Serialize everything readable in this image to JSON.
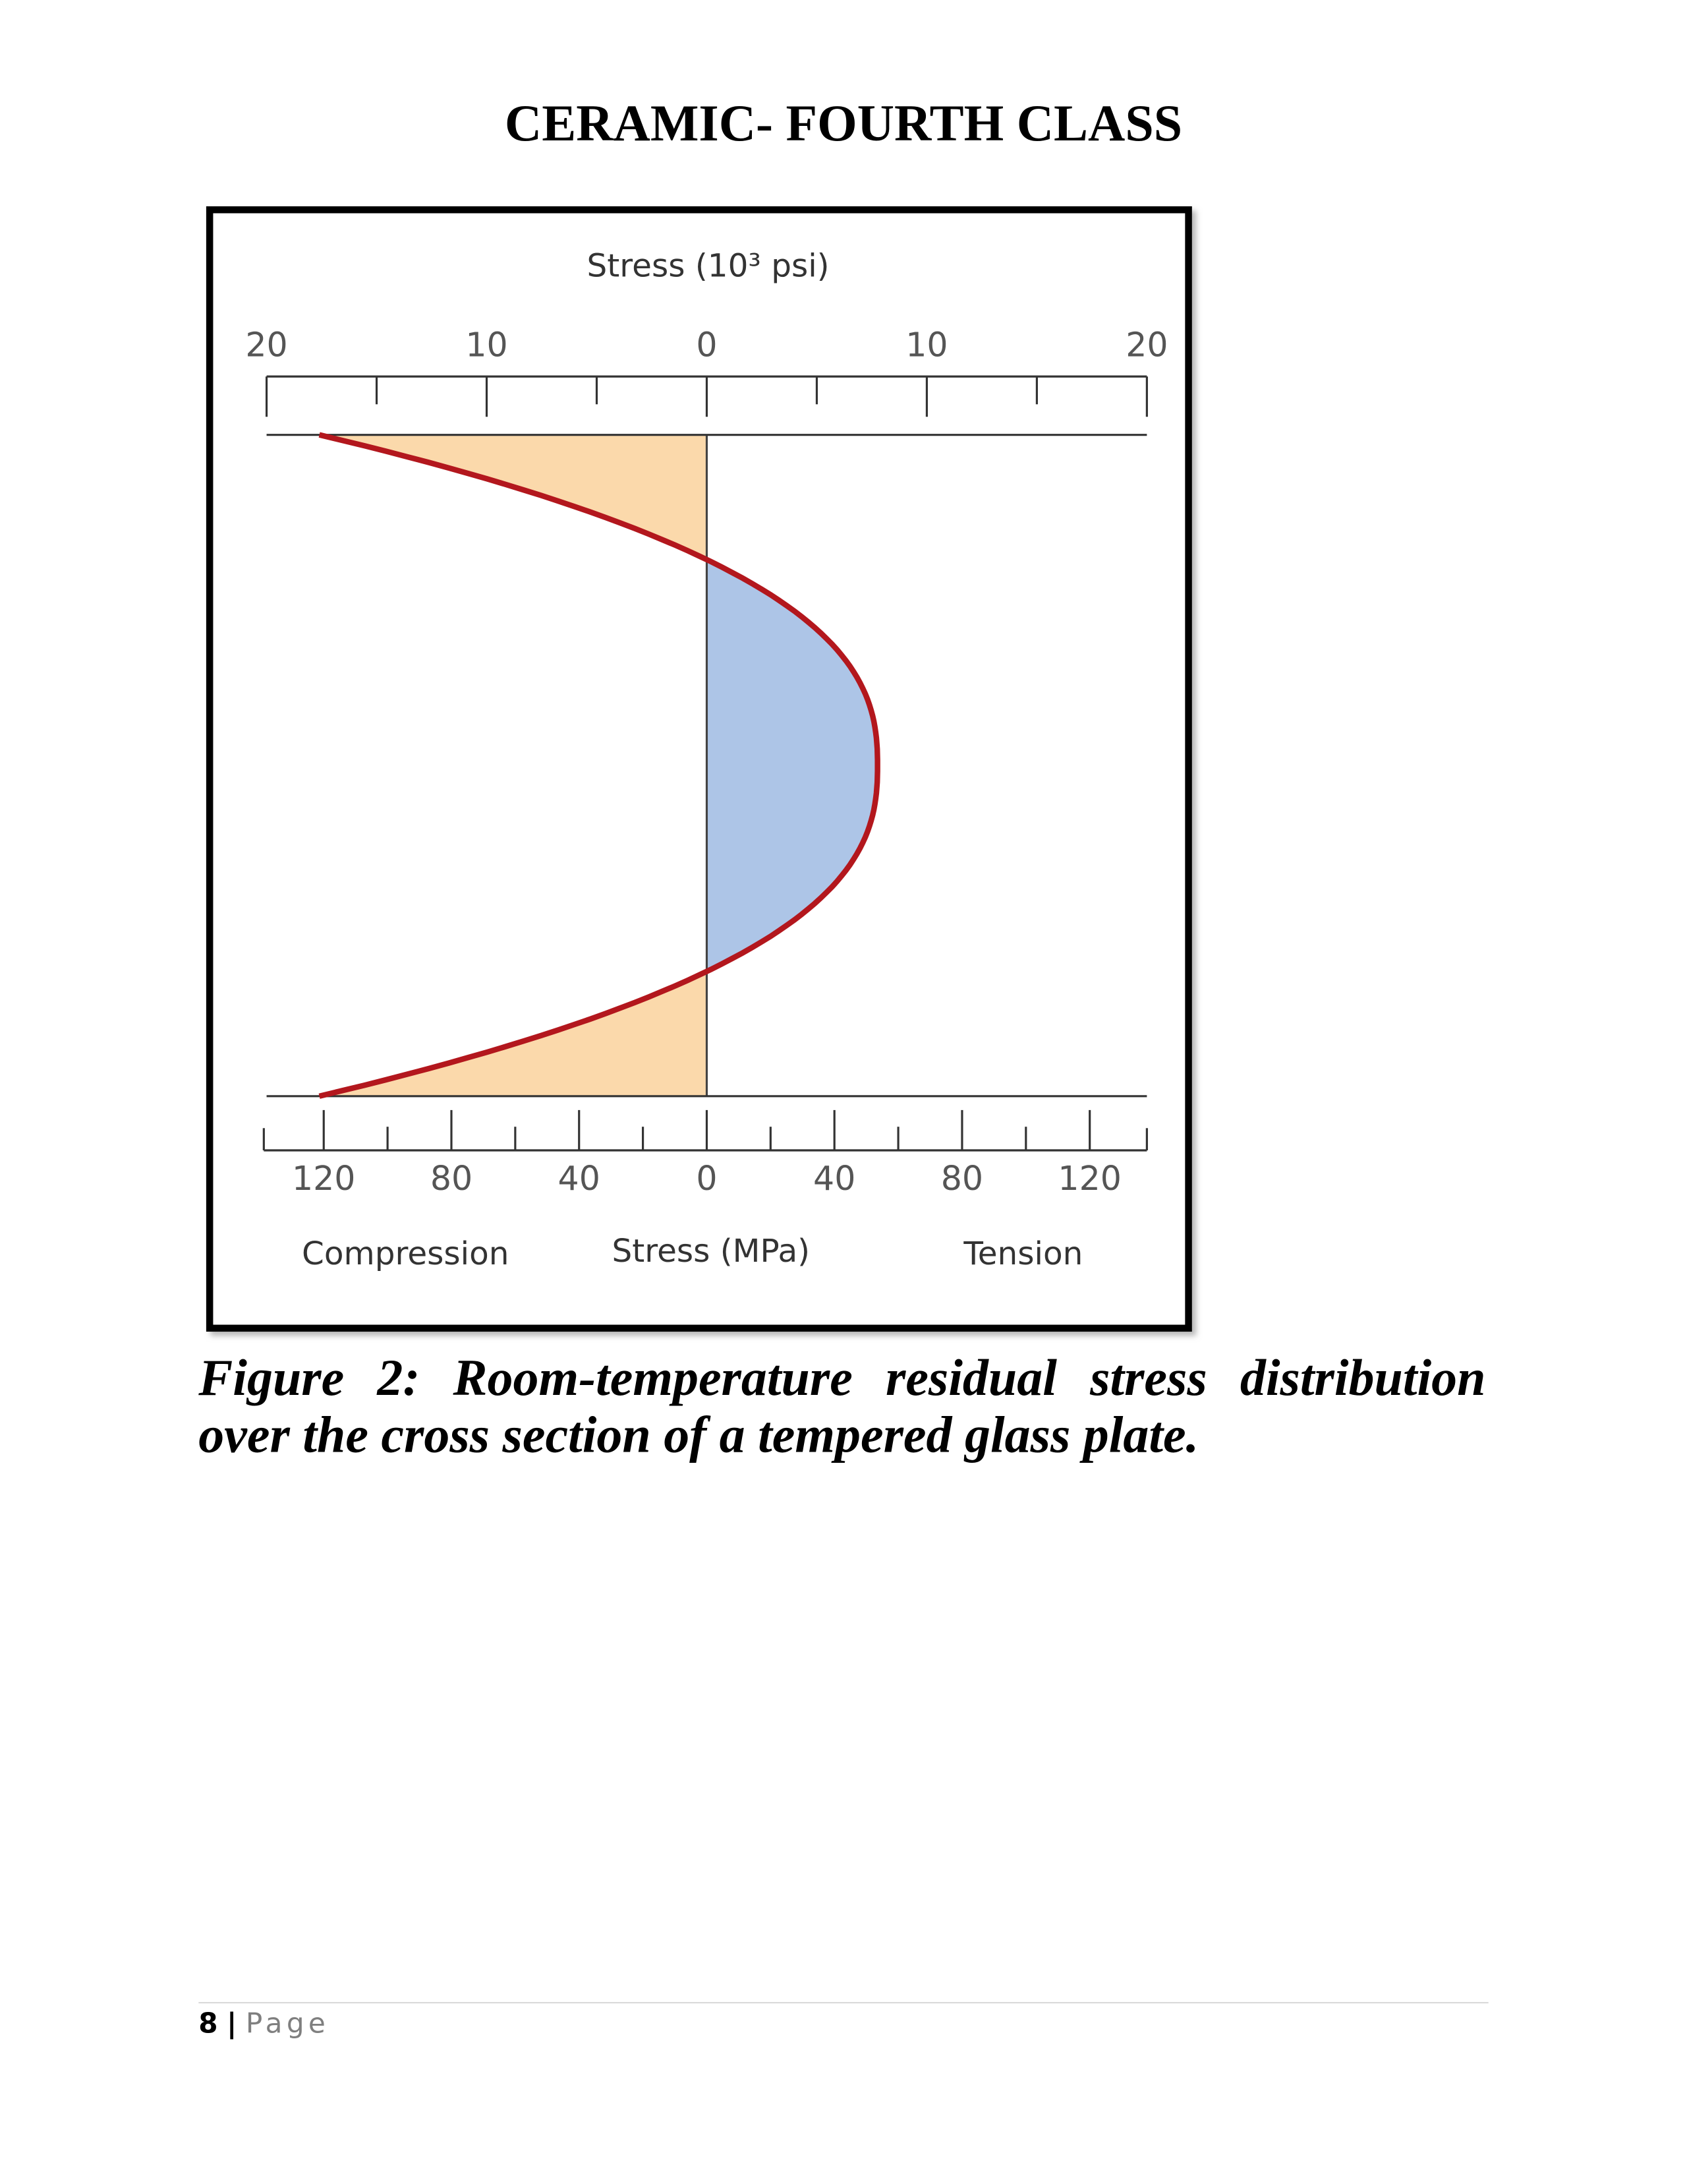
{
  "header": {
    "title": "CERAMIC- FOURTH CLASS"
  },
  "figure": {
    "top_axis_label": "Stress (10³ psi)",
    "top_ticks": [
      {
        "value": -20,
        "label": "20"
      },
      {
        "value": -10,
        "label": "10"
      },
      0,
      10,
      20
    ],
    "bottom_ticks": [
      {
        "value": -120,
        "label": "120"
      },
      {
        "value": -80,
        "label": "80"
      },
      {
        "value": -40,
        "label": "40"
      },
      0,
      40,
      80,
      120
    ],
    "bottom_axis_label": "Stress (MPa)",
    "left_label": "Compression",
    "right_label": "Tension"
  },
  "caption": "Figure 2: Room-temperature residual stress distribution over the cross section of a tempered glass plate.",
  "footer": {
    "page_number": "8",
    "separator": "|",
    "label": "Page"
  }
}
